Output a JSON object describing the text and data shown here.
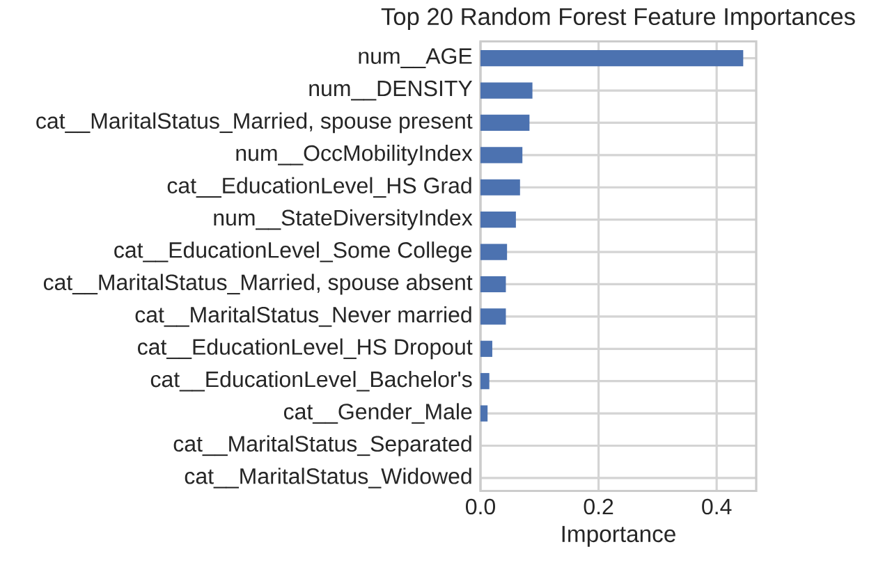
{
  "chart_data": {
    "type": "bar",
    "orientation": "horizontal",
    "title": "Top 20 Random Forest Feature Importances",
    "xlabel": "Importance",
    "categories": [
      "num__AGE",
      "num__DENSITY",
      "cat__MaritalStatus_Married, spouse present",
      "num__OccMobilityIndex",
      "cat__EducationLevel_HS Grad",
      "num__StateDiversityIndex",
      "cat__EducationLevel_Some College",
      "cat__MaritalStatus_Married, spouse absent",
      "cat__MaritalStatus_Never married",
      "cat__EducationLevel_HS Dropout",
      "cat__EducationLevel_Bachelor's",
      "cat__Gender_Male",
      "cat__MaritalStatus_Separated",
      "cat__MaritalStatus_Widowed"
    ],
    "values": [
      0.445,
      0.088,
      0.083,
      0.071,
      0.067,
      0.06,
      0.045,
      0.043,
      0.043,
      0.02,
      0.015,
      0.012,
      0,
      0
    ],
    "color": "#4c72b0",
    "xlim": [
      0,
      0.467
    ],
    "xticks": [
      {
        "value": 0,
        "label": "0.0"
      },
      {
        "value": 0.2,
        "label": "0.2"
      },
      {
        "value": 0.4,
        "label": "0.4"
      }
    ],
    "grid": true
  }
}
